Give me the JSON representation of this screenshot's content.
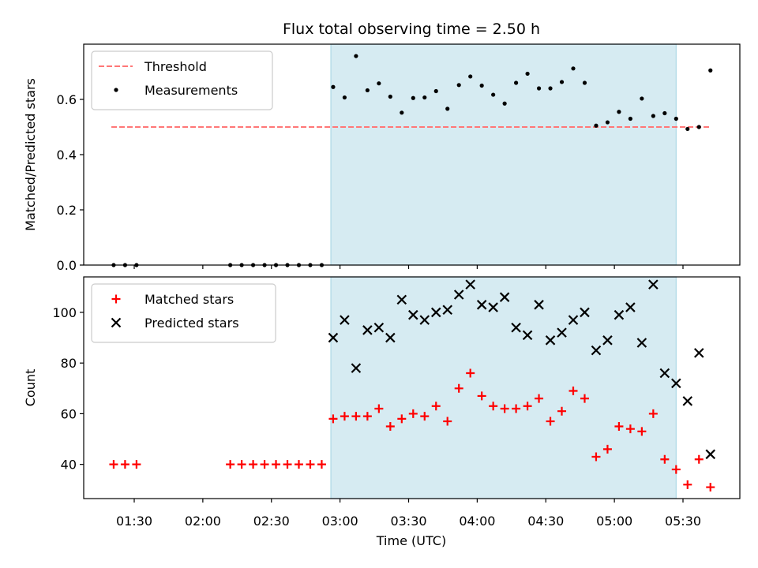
{
  "chart_data": {
    "type": "scatter",
    "title": "Flux total observing time = 2.50 h",
    "xlabel": "Time (UTC)",
    "x_ticks": [
      "01:30",
      "02:00",
      "02:30",
      "03:00",
      "03:30",
      "04:00",
      "04:30",
      "05:00",
      "05:30"
    ],
    "shaded_region": {
      "start": "02:56",
      "end": "05:27",
      "color": "#add8e6"
    },
    "panels": [
      {
        "ylabel": "Matched/Predicted stars",
        "ylim": [
          0,
          0.8
        ],
        "y_ticks": [
          "0.0",
          "0.2",
          "0.4",
          "0.6"
        ],
        "legend_position": "upper-left",
        "threshold": {
          "name": "Threshold",
          "value": 0.5,
          "start": "01:20",
          "end": "05:42",
          "color": "#ff7777"
        },
        "series": [
          {
            "name": "Measurements",
            "color": "#000000",
            "marker": "dot",
            "points": [
              [
                "01:21",
                0.0
              ],
              [
                "01:26",
                0.0
              ],
              [
                "01:31",
                0.0
              ],
              [
                "02:12",
                0.0
              ],
              [
                "02:17",
                0.0
              ],
              [
                "02:22",
                0.0
              ],
              [
                "02:27",
                0.0
              ],
              [
                "02:32",
                0.0
              ],
              [
                "02:37",
                0.0
              ],
              [
                "02:42",
                0.0
              ],
              [
                "02:47",
                0.0
              ],
              [
                "02:52",
                0.0
              ],
              [
                "02:57",
                0.645
              ],
              [
                "03:02",
                0.607
              ],
              [
                "03:07",
                0.757
              ],
              [
                "03:12",
                0.633
              ],
              [
                "03:17",
                0.658
              ],
              [
                "03:22",
                0.61
              ],
              [
                "03:27",
                0.552
              ],
              [
                "03:32",
                0.605
              ],
              [
                "03:37",
                0.607
              ],
              [
                "03:42",
                0.63
              ],
              [
                "03:47",
                0.566
              ],
              [
                "03:52",
                0.652
              ],
              [
                "03:57",
                0.683
              ],
              [
                "04:02",
                0.65
              ],
              [
                "04:07",
                0.617
              ],
              [
                "04:12",
                0.585
              ],
              [
                "04:17",
                0.66
              ],
              [
                "04:22",
                0.693
              ],
              [
                "04:27",
                0.64
              ],
              [
                "04:32",
                0.64
              ],
              [
                "04:37",
                0.663
              ],
              [
                "04:42",
                0.712
              ],
              [
                "04:47",
                0.66
              ],
              [
                "04:52",
                0.505
              ],
              [
                "04:57",
                0.517
              ],
              [
                "05:02",
                0.555
              ],
              [
                "05:07",
                0.53
              ],
              [
                "05:12",
                0.603
              ],
              [
                "05:17",
                0.54
              ],
              [
                "05:22",
                0.55
              ],
              [
                "05:27",
                0.53
              ],
              [
                "05:32",
                0.493
              ],
              [
                "05:37",
                0.5
              ],
              [
                "05:42",
                0.705
              ]
            ]
          }
        ]
      },
      {
        "ylabel": "Count",
        "ylim": [
          26.5,
          114
        ],
        "y_ticks": [
          "40",
          "60",
          "80",
          "100"
        ],
        "legend_position": "upper-left",
        "series": [
          {
            "name": "Matched stars",
            "color": "#ff0000",
            "marker": "plus",
            "points": [
              [
                "01:21",
                40
              ],
              [
                "01:26",
                40
              ],
              [
                "01:31",
                40
              ],
              [
                "02:12",
                40
              ],
              [
                "02:17",
                40
              ],
              [
                "02:22",
                40
              ],
              [
                "02:27",
                40
              ],
              [
                "02:32",
                40
              ],
              [
                "02:37",
                40
              ],
              [
                "02:42",
                40
              ],
              [
                "02:47",
                40
              ],
              [
                "02:52",
                40
              ],
              [
                "02:57",
                58
              ],
              [
                "03:02",
                59
              ],
              [
                "03:07",
                59
              ],
              [
                "03:12",
                59
              ],
              [
                "03:17",
                62
              ],
              [
                "03:22",
                55
              ],
              [
                "03:27",
                58
              ],
              [
                "03:32",
                60
              ],
              [
                "03:37",
                59
              ],
              [
                "03:42",
                63
              ],
              [
                "03:47",
                57
              ],
              [
                "03:52",
                70
              ],
              [
                "03:57",
                76
              ],
              [
                "04:02",
                67
              ],
              [
                "04:07",
                63
              ],
              [
                "04:12",
                62
              ],
              [
                "04:17",
                62
              ],
              [
                "04:22",
                63
              ],
              [
                "04:27",
                66
              ],
              [
                "04:32",
                57
              ],
              [
                "04:37",
                61
              ],
              [
                "04:42",
                69
              ],
              [
                "04:47",
                66
              ],
              [
                "04:52",
                43
              ],
              [
                "04:57",
                46
              ],
              [
                "05:02",
                55
              ],
              [
                "05:07",
                54
              ],
              [
                "05:12",
                53
              ],
              [
                "05:17",
                60
              ],
              [
                "05:22",
                42
              ],
              [
                "05:27",
                38
              ],
              [
                "05:32",
                32
              ],
              [
                "05:37",
                42
              ],
              [
                "05:42",
                31
              ]
            ]
          },
          {
            "name": "Predicted stars",
            "color": "#000000",
            "marker": "cross",
            "points": [
              [
                "02:57",
                90
              ],
              [
                "03:02",
                97
              ],
              [
                "03:07",
                78
              ],
              [
                "03:12",
                93
              ],
              [
                "03:17",
                94
              ],
              [
                "03:22",
                90
              ],
              [
                "03:27",
                105
              ],
              [
                "03:32",
                99
              ],
              [
                "03:37",
                97
              ],
              [
                "03:42",
                100
              ],
              [
                "03:47",
                101
              ],
              [
                "03:52",
                107
              ],
              [
                "03:57",
                111
              ],
              [
                "04:02",
                103
              ],
              [
                "04:07",
                102
              ],
              [
                "04:12",
                106
              ],
              [
                "04:17",
                94
              ],
              [
                "04:22",
                91
              ],
              [
                "04:27",
                103
              ],
              [
                "04:32",
                89
              ],
              [
                "04:37",
                92
              ],
              [
                "04:42",
                97
              ],
              [
                "04:47",
                100
              ],
              [
                "04:52",
                85
              ],
              [
                "04:57",
                89
              ],
              [
                "05:02",
                99
              ],
              [
                "05:07",
                102
              ],
              [
                "05:12",
                88
              ],
              [
                "05:17",
                111
              ],
              [
                "05:22",
                76
              ],
              [
                "05:27",
                72
              ],
              [
                "05:32",
                65
              ],
              [
                "05:37",
                84
              ],
              [
                "05:42",
                44
              ]
            ]
          }
        ]
      }
    ]
  }
}
